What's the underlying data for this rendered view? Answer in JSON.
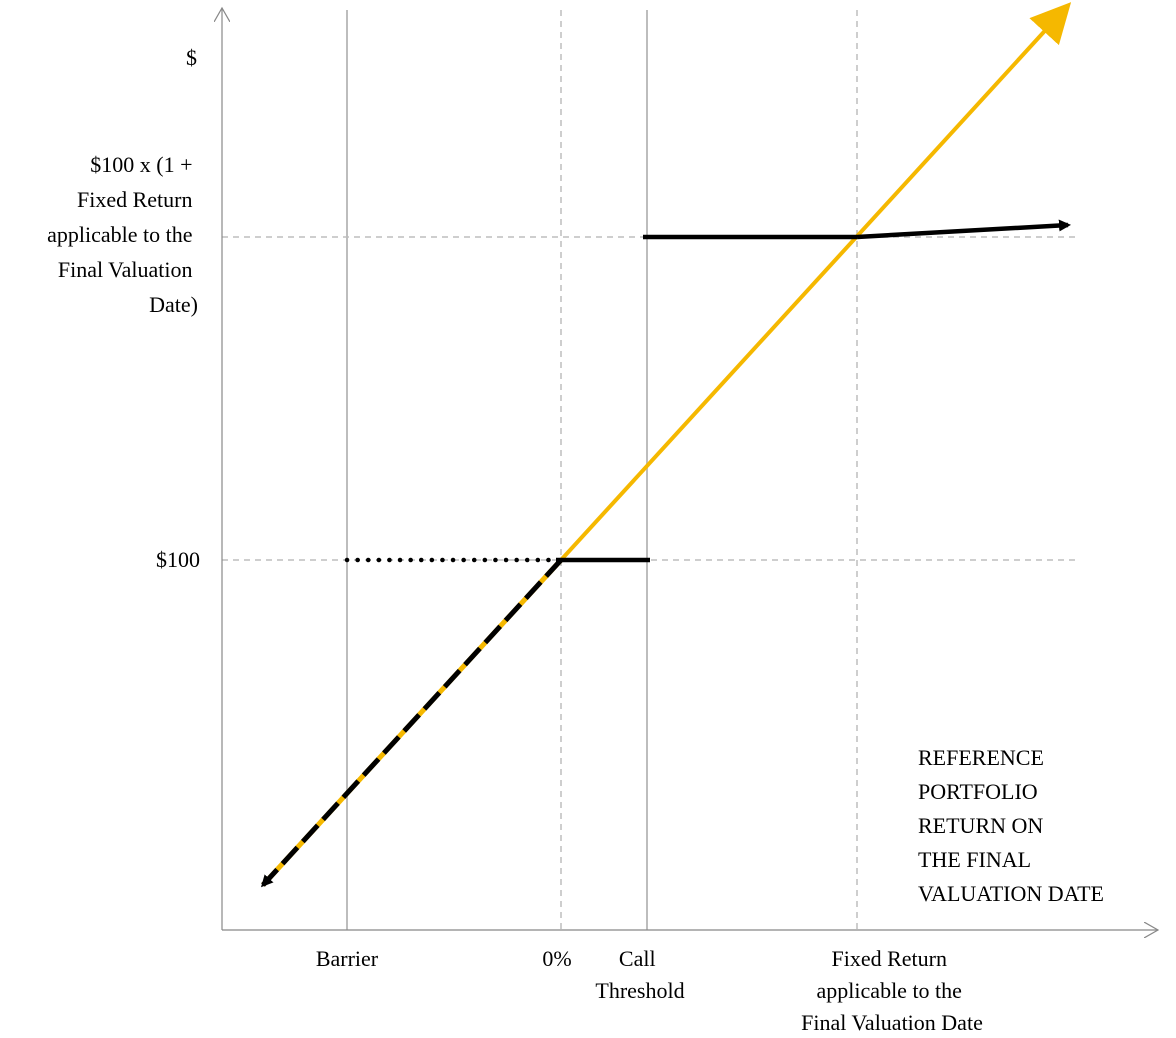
{
  "chart_data": {
    "type": "line",
    "title": "",
    "ylabel": {
      "unit": "$",
      "fixed_return_lines": [
        "$100 x (1 +",
        "Fixed Return",
        "applicable to the",
        "Final Valuation",
        "Date)"
      ],
      "par": "$100"
    },
    "xlabel": [
      "REFERENCE",
      "PORTFOLIO",
      "RETURN ON",
      "THE FINAL",
      "VALUATION DATE"
    ],
    "x_ticks": {
      "barrier": "Barrier",
      "zero": "0%",
      "call_threshold": [
        "Call",
        "Threshold"
      ],
      "fixed_return": [
        "Fixed Return",
        "applicable to the",
        "Final Valuation Date"
      ]
    },
    "colors": {
      "reference": "#f5b800",
      "payoff": "#000000",
      "grid": "#bdbdbd",
      "guide": "#bdbdbd"
    },
    "series": [
      {
        "key": "reference",
        "points": [
          [
            0.36,
            0.52
          ],
          [
            1.0,
            1.0
          ]
        ]
      },
      {
        "key": "below_zero",
        "points": [
          [
            0.0,
            0.0
          ],
          [
            0.36,
            0.52
          ]
        ]
      },
      {
        "key": "barrier_dots",
        "points": [
          [
            0.2,
            0.52
          ],
          [
            0.36,
            0.52
          ]
        ]
      },
      {
        "key": "par_segment",
        "points": [
          [
            0.36,
            0.52
          ],
          [
            0.48,
            0.52
          ]
        ]
      },
      {
        "key": "fixed_segment",
        "points": [
          [
            0.48,
            0.8
          ],
          [
            0.7,
            0.8
          ],
          [
            1.0,
            0.82
          ]
        ]
      }
    ]
  }
}
